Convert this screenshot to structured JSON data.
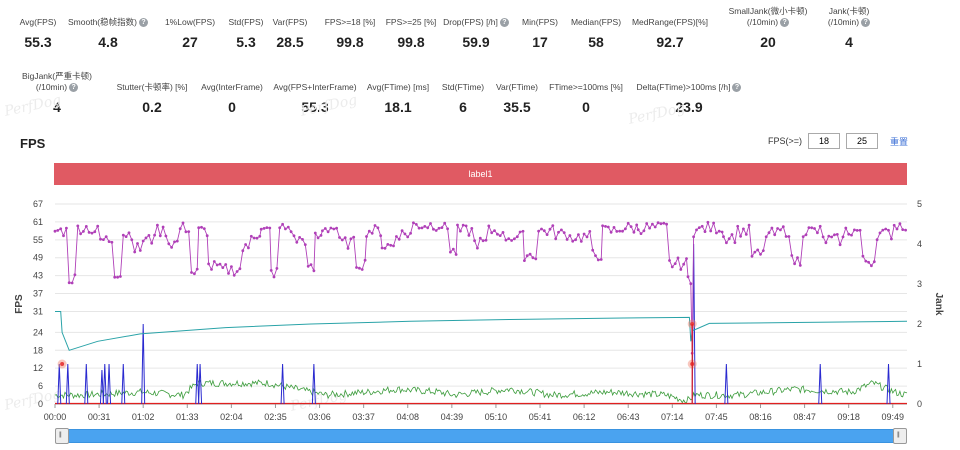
{
  "metrics_row1": [
    {
      "label": "Avg(FPS)",
      "value": "55.3",
      "help": false
    },
    {
      "label": "Smooth(稳帧指数)",
      "value": "4.8",
      "help": true
    },
    {
      "label": "1%Low(FPS)",
      "value": "27",
      "help": false
    },
    {
      "label": "Std(FPS)",
      "value": "5.3",
      "help": false
    },
    {
      "label": "Var(FPS)",
      "value": "28.5",
      "help": false
    },
    {
      "label": "FPS>=18 [%]",
      "value": "99.8",
      "help": false
    },
    {
      "label": "FPS>=25 [%]",
      "value": "99.8",
      "help": false
    },
    {
      "label": "Drop(FPS) [/h]",
      "value": "59.9",
      "help": true
    },
    {
      "label": "Min(FPS)",
      "value": "17",
      "help": false
    },
    {
      "label": "Median(FPS)",
      "value": "58",
      "help": false
    },
    {
      "label": "MedRange(FPS)[%]",
      "value": "92.7",
      "help": false
    },
    {
      "label": "SmallJank(微小卡顿)",
      "label2": "(/10min)",
      "value": "20",
      "help": true
    },
    {
      "label": "Jank(卡顿)",
      "label2": "(/10min)",
      "value": "4",
      "help": true
    }
  ],
  "metrics_row2": [
    {
      "label": "BigJank(严重卡顿)",
      "label2": "(/10min)",
      "value": "4",
      "help": true
    },
    {
      "label": "Stutter(卡顿率) [%]",
      "value": "0.2",
      "help": false
    },
    {
      "label": "Avg(InterFrame)",
      "value": "0",
      "help": false
    },
    {
      "label": "Avg(FPS+InterFrame)",
      "value": "55.3",
      "help": false
    },
    {
      "label": "Avg(FTime) [ms]",
      "value": "18.1",
      "help": false
    },
    {
      "label": "Std(FTime)",
      "value": "6",
      "help": false
    },
    {
      "label": "Var(FTime)",
      "value": "35.5",
      "help": false
    },
    {
      "label": "FTime>=100ms [%]",
      "value": "0",
      "help": false
    },
    {
      "label": "Delta(FTime)>100ms [/h]",
      "value": "23.9",
      "help": true
    }
  ],
  "help_glyph": "?",
  "watermark_text": "PerfDog",
  "section_title": "FPS",
  "threshold": {
    "label": "FPS(>=)",
    "value1": "18",
    "value2": "25",
    "reset_label": "重置"
  },
  "label_band": {
    "text": "label1",
    "color": "#e05a63"
  },
  "chart_data": {
    "type": "line",
    "ylabel": "FPS",
    "y2label": "Jank",
    "ylim": [
      0,
      67
    ],
    "y_ticks": [
      0,
      6,
      12,
      18,
      24,
      31,
      37,
      43,
      49,
      55,
      61,
      67
    ],
    "y2lim": [
      0,
      5
    ],
    "y2_ticks": [
      0,
      1,
      2,
      3,
      4,
      5
    ],
    "x_tick_labels": [
      "00:00",
      "00:31",
      "01:02",
      "01:33",
      "02:04",
      "02:35",
      "03:06",
      "03:37",
      "04:08",
      "04:39",
      "05:10",
      "05:41",
      "06:12",
      "06:43",
      "07:14",
      "07:45",
      "08:16",
      "08:47",
      "09:18",
      "09:49"
    ],
    "x_tick_seconds": [
      0,
      31,
      62,
      93,
      124,
      155,
      186,
      217,
      248,
      279,
      310,
      341,
      372,
      403,
      434,
      465,
      496,
      527,
      558,
      589
    ],
    "x_range_seconds": [
      0,
      599
    ],
    "colors": {
      "fps": "#b040b8",
      "avg_fps": "#2aa3a8",
      "frametime": "#3c9c3c",
      "jank": "#2a2ad0",
      "bigjank": "#e02020"
    },
    "fps_segments": [
      {
        "t0": 0,
        "t1": 10,
        "base": 58
      },
      {
        "t1": 16,
        "base": 42
      },
      {
        "t1": 26,
        "base": 59
      },
      {
        "t1": 32,
        "base": 58
      },
      {
        "t1": 42,
        "base": 55
      },
      {
        "t1": 48,
        "base": 44
      },
      {
        "t1": 56,
        "base": 57
      },
      {
        "t1": 62,
        "base": 52
      },
      {
        "t1": 70,
        "base": 55
      },
      {
        "t1": 80,
        "base": 58
      },
      {
        "t1": 88,
        "base": 54
      },
      {
        "t1": 96,
        "base": 59
      },
      {
        "t1": 101,
        "base": 44
      },
      {
        "t1": 108,
        "base": 58
      },
      {
        "t1": 116,
        "base": 46
      },
      {
        "t1": 132,
        "base": 45
      },
      {
        "t1": 138,
        "base": 52
      },
      {
        "t1": 145,
        "base": 57
      },
      {
        "t1": 152,
        "base": 58
      },
      {
        "t1": 158,
        "base": 44
      },
      {
        "t1": 168,
        "base": 59
      },
      {
        "t1": 178,
        "base": 55
      },
      {
        "t1": 183,
        "base": 45
      },
      {
        "t1": 188,
        "base": 56
      },
      {
        "t1": 200,
        "base": 59
      },
      {
        "t1": 212,
        "base": 54
      },
      {
        "t1": 219,
        "base": 47
      },
      {
        "t1": 230,
        "base": 58
      },
      {
        "t1": 240,
        "base": 53
      },
      {
        "t1": 252,
        "base": 57
      },
      {
        "t1": 262,
        "base": 60
      },
      {
        "t1": 278,
        "base": 60
      },
      {
        "t1": 283,
        "base": 51
      },
      {
        "t1": 295,
        "base": 58
      },
      {
        "t1": 305,
        "base": 54
      },
      {
        "t1": 315,
        "base": 58
      },
      {
        "t1": 330,
        "base": 56
      },
      {
        "t1": 340,
        "base": 50
      },
      {
        "t1": 352,
        "base": 58
      },
      {
        "t1": 362,
        "base": 57
      },
      {
        "t1": 378,
        "base": 56
      },
      {
        "t1": 385,
        "base": 50
      },
      {
        "t1": 397,
        "base": 58
      },
      {
        "t1": 410,
        "base": 59
      },
      {
        "t1": 432,
        "base": 59
      },
      {
        "t1": 445,
        "base": 47
      },
      {
        "t1": 449,
        "base": 42
      },
      {
        "t1": 455,
        "base": 58
      },
      {
        "t1": 470,
        "base": 59
      },
      {
        "t1": 480,
        "base": 56
      },
      {
        "t1": 490,
        "base": 58
      },
      {
        "t1": 500,
        "base": 50
      },
      {
        "t1": 510,
        "base": 57
      },
      {
        "t1": 518,
        "base": 58
      },
      {
        "t1": 526,
        "base": 48
      },
      {
        "t1": 540,
        "base": 58
      },
      {
        "t1": 556,
        "base": 55
      },
      {
        "t1": 568,
        "base": 58
      },
      {
        "t1": 578,
        "base": 48
      },
      {
        "t1": 590,
        "base": 57
      },
      {
        "t1": 599,
        "base": 60
      }
    ],
    "fps_dip": {
      "t": 448,
      "value": 17
    },
    "avg_fps_line": [
      [
        0,
        31
      ],
      [
        4,
        31
      ],
      [
        5,
        24
      ],
      [
        10,
        18
      ],
      [
        30,
        21
      ],
      [
        60,
        23.5
      ],
      [
        120,
        25.6
      ],
      [
        180,
        26.8
      ],
      [
        250,
        27.7
      ],
      [
        320,
        28.3
      ],
      [
        400,
        28.8
      ],
      [
        446,
        29
      ],
      [
        447,
        21
      ],
      [
        448,
        24.5
      ],
      [
        460,
        27
      ],
      [
        520,
        27.3
      ],
      [
        599,
        27.7
      ]
    ],
    "frametime_base": [
      [
        0,
        3
      ],
      [
        20,
        3
      ],
      [
        60,
        4
      ],
      [
        90,
        3
      ],
      [
        100,
        7
      ],
      [
        150,
        7
      ],
      [
        160,
        6
      ],
      [
        190,
        3
      ],
      [
        220,
        4
      ],
      [
        240,
        5
      ],
      [
        270,
        4
      ],
      [
        280,
        3
      ],
      [
        320,
        5
      ],
      [
        350,
        3
      ],
      [
        390,
        4
      ],
      [
        430,
        3
      ],
      [
        444,
        1
      ],
      [
        450,
        3
      ],
      [
        480,
        3
      ],
      [
        520,
        5
      ],
      [
        560,
        4
      ],
      [
        575,
        7
      ],
      [
        590,
        4
      ],
      [
        599,
        3
      ]
    ],
    "jank_spikes": [
      {
        "t": 3,
        "v": 1
      },
      {
        "t": 9,
        "v": 1
      },
      {
        "t": 22,
        "v": 1
      },
      {
        "t": 33,
        "v": 0.85
      },
      {
        "t": 35,
        "v": 1
      },
      {
        "t": 38,
        "v": 1
      },
      {
        "t": 48,
        "v": 1
      },
      {
        "t": 62,
        "v": 2
      },
      {
        "t": 100,
        "v": 1
      },
      {
        "t": 102,
        "v": 1
      },
      {
        "t": 160,
        "v": 1
      },
      {
        "t": 182,
        "v": 1
      },
      {
        "t": 449,
        "v": 4
      },
      {
        "t": 472,
        "v": 1
      },
      {
        "t": 538,
        "v": 1
      },
      {
        "t": 586,
        "v": 1
      }
    ],
    "big_jank_markers": [
      {
        "t": 5,
        "y_fps": 13.4
      },
      {
        "t": 448,
        "y_fps": 26.8
      },
      {
        "t": 448,
        "y_fps": 13.4
      }
    ],
    "zoom_range": [
      0,
      1
    ]
  }
}
